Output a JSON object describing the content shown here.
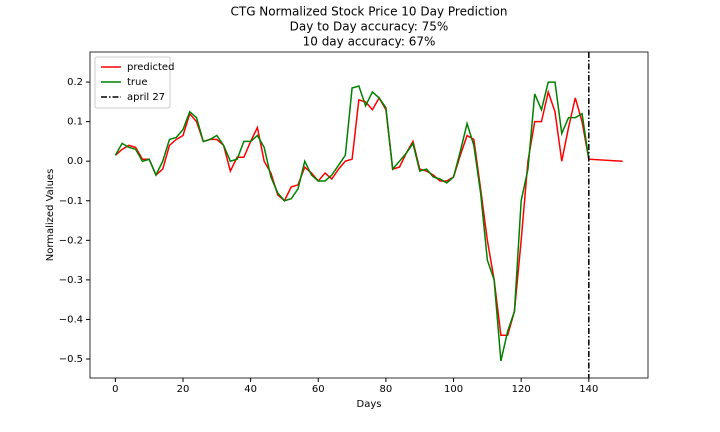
{
  "chart_data": {
    "type": "line",
    "title": [
      "CTG Normalized Stock Price 10 Day Prediction",
      "Day to Day accuracy: 75%",
      "10 day accuracy: 67%"
    ],
    "x_label": "Days",
    "y_label": "Normalized Values",
    "x": [
      0,
      2,
      4,
      6,
      8,
      10,
      12,
      14,
      16,
      18,
      20,
      22,
      24,
      26,
      28,
      30,
      32,
      34,
      36,
      38,
      40,
      42,
      44,
      46,
      48,
      50,
      52,
      54,
      56,
      58,
      60,
      62,
      64,
      66,
      68,
      70,
      72,
      74,
      76,
      78,
      80,
      82,
      84,
      86,
      88,
      90,
      92,
      94,
      96,
      98,
      100,
      102,
      104,
      106,
      108,
      110,
      112,
      114,
      116,
      118,
      120,
      122,
      124,
      126,
      128,
      130,
      132,
      134,
      136,
      138,
      140,
      150
    ],
    "series": [
      {
        "name": "predicted",
        "color": "#ff0000",
        "values": [
          0.015,
          0.03,
          0.04,
          0.035,
          0.005,
          0.005,
          -0.035,
          -0.02,
          0.04,
          0.055,
          0.065,
          0.12,
          0.1,
          0.05,
          0.055,
          0.055,
          0.04,
          -0.025,
          0.01,
          0.01,
          0.05,
          0.085,
          0.0,
          -0.03,
          -0.085,
          -0.1,
          -0.065,
          -0.06,
          -0.015,
          -0.03,
          -0.05,
          -0.03,
          -0.045,
          -0.02,
          0.0,
          0.005,
          0.155,
          0.15,
          0.13,
          0.16,
          0.13,
          -0.02,
          -0.015,
          0.02,
          0.05,
          -0.02,
          -0.025,
          -0.035,
          -0.05,
          -0.05,
          -0.04,
          0.015,
          0.065,
          0.055,
          -0.07,
          -0.2,
          -0.3,
          -0.44,
          -0.44,
          -0.38,
          -0.2,
          0.0,
          0.1,
          0.1,
          0.175,
          0.125,
          0.0,
          0.085,
          0.16,
          0.1,
          0.005,
          0.0
        ]
      },
      {
        "name": "true",
        "color": "#008000",
        "values": [
          0.015,
          0.045,
          0.035,
          0.03,
          0.0,
          0.005,
          -0.035,
          0.0,
          0.055,
          0.06,
          0.08,
          0.125,
          0.11,
          0.05,
          0.055,
          0.065,
          0.04,
          0.0,
          0.005,
          0.05,
          0.05,
          0.065,
          0.035,
          -0.04,
          -0.08,
          -0.1,
          -0.095,
          -0.07,
          0.0,
          -0.035,
          -0.05,
          -0.05,
          -0.035,
          -0.01,
          0.015,
          0.185,
          0.19,
          0.14,
          0.175,
          0.16,
          0.135,
          -0.02,
          0.0,
          0.02,
          0.045,
          -0.025,
          -0.02,
          -0.04,
          -0.045,
          -0.055,
          -0.04,
          0.025,
          0.095,
          0.04,
          -0.08,
          -0.25,
          -0.3,
          -0.505,
          -0.43,
          -0.38,
          -0.1,
          -0.02,
          0.17,
          0.13,
          0.2,
          0.2,
          0.07,
          0.11,
          0.11,
          0.12,
          0.005,
          null
        ]
      }
    ],
    "vline": {
      "name": "april 27",
      "x": 140,
      "color": "#000000"
    },
    "xlim": [
      -7.5,
      157.5
    ],
    "xticks": [
      0,
      20,
      40,
      60,
      80,
      100,
      120,
      140
    ],
    "ylim": [
      -0.548,
      0.276
    ],
    "yticks": [
      {
        "value": -0.5,
        "label": "−0.5"
      },
      {
        "value": -0.4,
        "label": "−0.4"
      },
      {
        "value": -0.3,
        "label": "−0.3"
      },
      {
        "value": -0.2,
        "label": "−0.2"
      },
      {
        "value": -0.1,
        "label": "−0.1"
      },
      {
        "value": 0.0,
        "label": "0.0"
      },
      {
        "value": 0.1,
        "label": "0.1"
      },
      {
        "value": 0.2,
        "label": "0.2"
      }
    ],
    "legend": "upper left",
    "grid": false
  }
}
